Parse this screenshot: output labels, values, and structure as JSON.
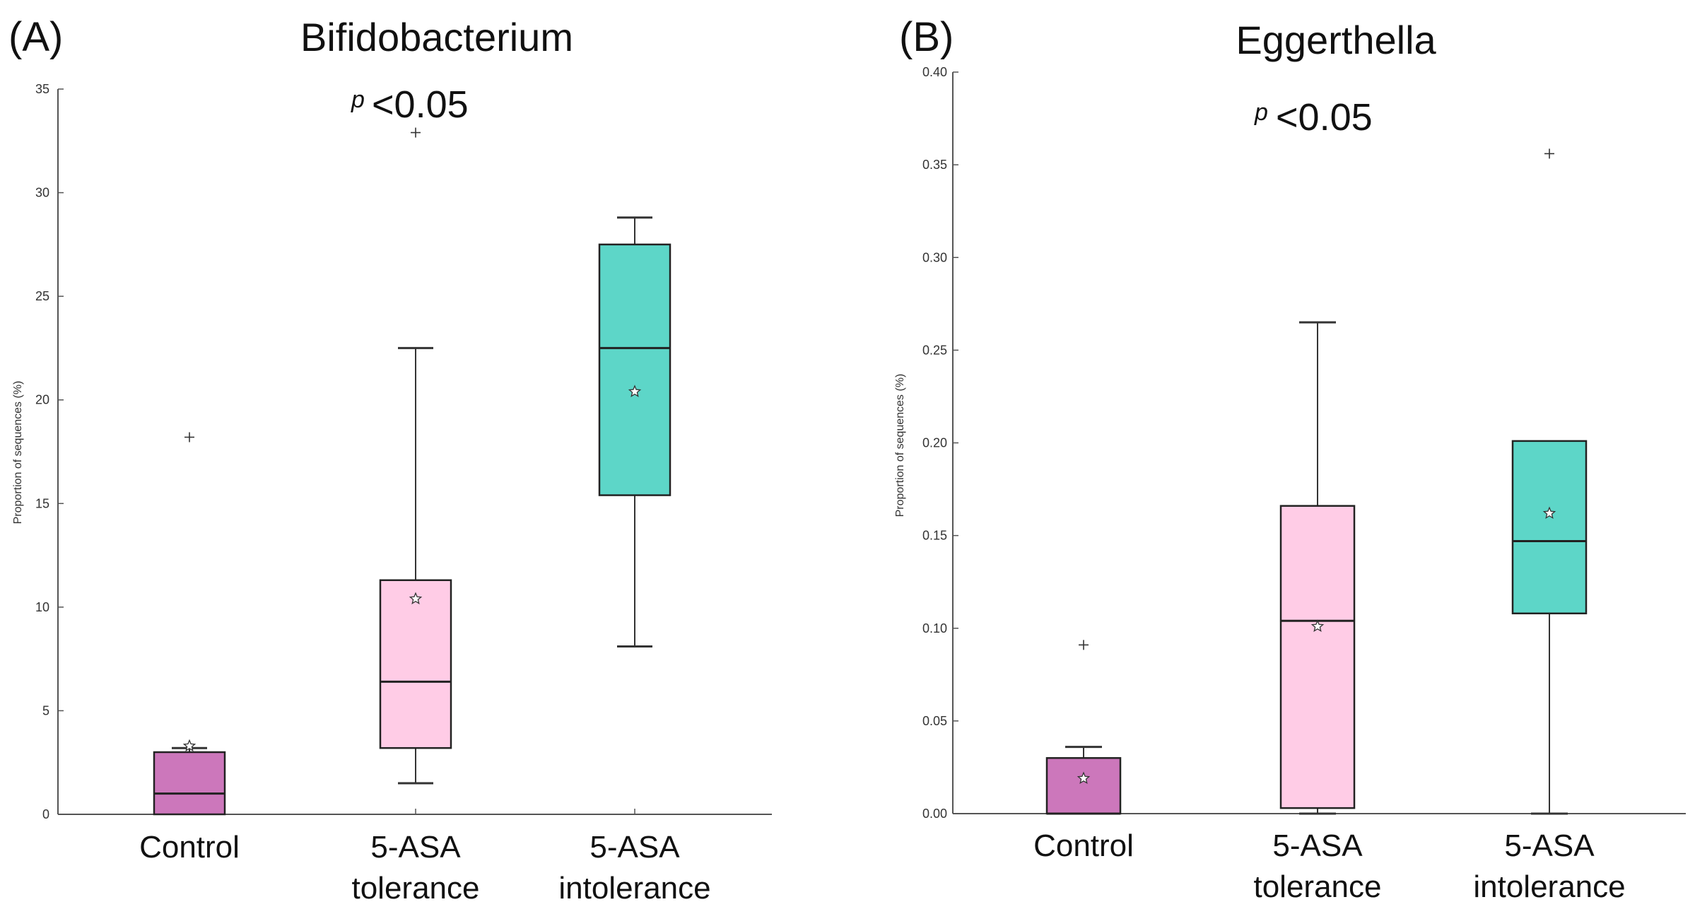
{
  "colors": {
    "control": "#cc77bb",
    "tolerance": "#ffcce6",
    "intolerance": "#5dd6c8",
    "axis": "#555555",
    "box_stroke": "#222222",
    "text": "#111111"
  },
  "chart_data": [
    {
      "type": "box",
      "panel_label": "(A)",
      "title": "Bifidobacterium",
      "p_symbol": "p",
      "p_text": "<0.05",
      "ylabel": "Proportion of sequences (%)",
      "ylim": [
        0,
        35
      ],
      "yticks": [
        0,
        5,
        10,
        15,
        20,
        25,
        30,
        35
      ],
      "ytick_labels": [
        "0",
        "5",
        "10",
        "15",
        "20",
        "25",
        "30",
        "35"
      ],
      "categories": [
        {
          "name": "control",
          "label_lines": [
            "Control"
          ],
          "color_key": "control",
          "whisker_low": 0,
          "q1": 0,
          "median": 1.0,
          "q3": 3.0,
          "whisker_high": 3.2,
          "mean": 3.3,
          "outliers": [
            18.2
          ]
        },
        {
          "name": "tolerance",
          "label_lines": [
            "5-ASA",
            "tolerance"
          ],
          "color_key": "tolerance",
          "whisker_low": 1.5,
          "q1": 3.2,
          "median": 6.4,
          "q3": 11.3,
          "whisker_high": 22.5,
          "mean": 10.4,
          "outliers": [
            32.9
          ]
        },
        {
          "name": "intolerance",
          "label_lines": [
            "5-ASA",
            "intolerance"
          ],
          "color_key": "intolerance",
          "whisker_low": 8.1,
          "q1": 15.4,
          "median": 22.5,
          "q3": 27.5,
          "whisker_high": 28.8,
          "mean": 20.4,
          "outliers": []
        }
      ]
    },
    {
      "type": "box",
      "panel_label": "(B)",
      "title": "Eggerthella",
      "p_symbol": "p",
      "p_text": "<0.05",
      "ylabel": "Proportion of sequences (%)",
      "ylim": [
        0,
        0.4
      ],
      "yticks": [
        0,
        0.05,
        0.1,
        0.15,
        0.2,
        0.25,
        0.3,
        0.35,
        0.4
      ],
      "ytick_labels": [
        "0.00",
        "0.05",
        "0.10",
        "0.15",
        "0.20",
        "0.25",
        "0.30",
        "0.35",
        "0.40"
      ],
      "categories": [
        {
          "name": "control",
          "label_lines": [
            "Control"
          ],
          "color_key": "control",
          "whisker_low": 0,
          "q1": 0,
          "median": 0,
          "q3": 0.03,
          "whisker_high": 0.036,
          "mean": 0.019,
          "outliers": [
            0.091
          ]
        },
        {
          "name": "tolerance",
          "label_lines": [
            "5-ASA",
            "tolerance"
          ],
          "color_key": "tolerance",
          "whisker_low": 0,
          "q1": 0.003,
          "median": 0.104,
          "q3": 0.166,
          "whisker_high": 0.265,
          "mean": 0.101,
          "outliers": []
        },
        {
          "name": "intolerance",
          "label_lines": [
            "5-ASA",
            "intolerance"
          ],
          "color_key": "intolerance",
          "whisker_low": 0,
          "q1": 0.108,
          "median": 0.147,
          "q3": 0.201,
          "whisker_high": 0.201,
          "mean": 0.162,
          "outliers": [
            0.356
          ]
        }
      ]
    }
  ]
}
